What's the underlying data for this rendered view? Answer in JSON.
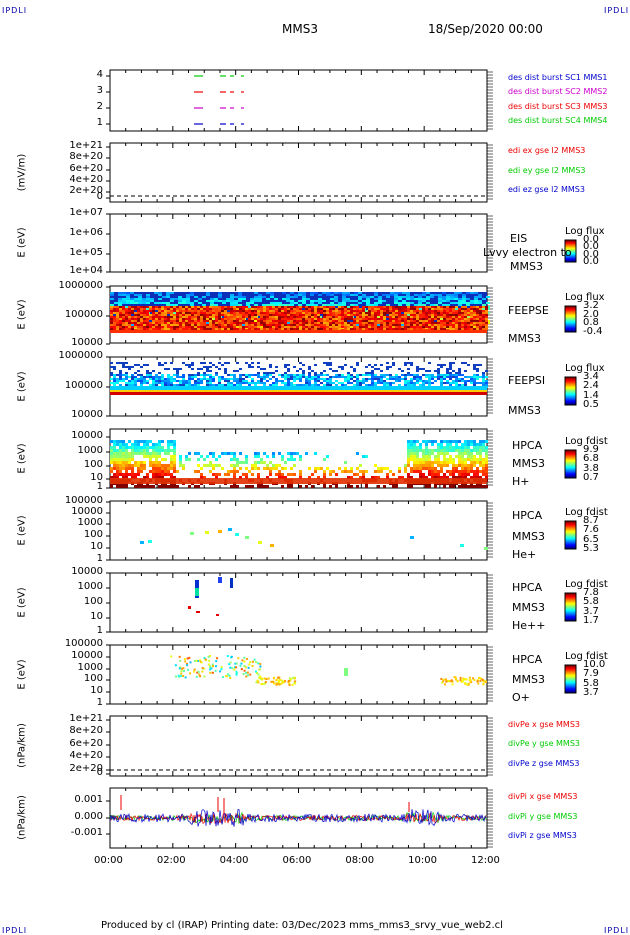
{
  "corners": {
    "tl": "IPDLI",
    "tr": "IPDLI",
    "bl": "IPDLI",
    "br": "IPDLI"
  },
  "header": {
    "title": "MMS3",
    "date": "18/Sep/2020 00:00"
  },
  "footer": {
    "text": "Produced by cl (IRAP)   Printing date: 03/Dec/2023   mms_mms3_srvy_vue_web2.cl"
  },
  "colors": {
    "c1": "#0000cc",
    "c2": "#cc00cc",
    "c3": "#ee0000",
    "c4": "#00cc00"
  },
  "chart_data": [
    {
      "type": "line",
      "id": "p1",
      "ylabel": "",
      "yticks": [
        "4",
        "3",
        "2",
        "1"
      ],
      "legend": [
        "des dist burst SC1 MMS1",
        "des dist burst SC2 MMS2",
        "des dist burst SC3 MMS3",
        "des dist burst SC4 MMS4"
      ],
      "series": [
        {
          "name": "des dist burst SC4 MMS4",
          "level": 4
        },
        {
          "name": "des dist burst SC3 MMS3",
          "level": 3
        },
        {
          "name": "des dist burst SC2 MMS2",
          "level": 2
        },
        {
          "name": "des dist burst SC1 MMS1",
          "level": 1
        }
      ]
    },
    {
      "type": "line",
      "id": "p2",
      "ylabel": "(mV/m)",
      "yticks": [
        "1e+21",
        "8e+20",
        "6e+20",
        "4e+20",
        "2e+20",
        "0"
      ],
      "legend": [
        "edi ex gse l2 MMS3",
        "edi ey gse l2 MMS3",
        "edi ez gse l2 MMS3"
      ]
    },
    {
      "type": "heatmap",
      "id": "p3",
      "ylabel": "E (eV)",
      "yticks": [
        "1e+07",
        "1e+06",
        "1e+05",
        "1e+04"
      ],
      "side": [
        "EIS",
        "MMS3"
      ],
      "overlay": "Lvvy electron to",
      "colorbar": {
        "title": "Log flux",
        "ticks": [
          "0.0",
          "0.0",
          "0.0",
          "0.0"
        ]
      }
    },
    {
      "type": "heatmap",
      "id": "p4",
      "ylabel": "E (eV)",
      "yticks": [
        "1000000",
        "100000",
        "10000"
      ],
      "side": [
        "FEEPSE",
        "MMS3"
      ],
      "colorbar": {
        "title": "Log flux",
        "ticks": [
          "3.2",
          "2.0",
          "0.8",
          "-0.4"
        ]
      }
    },
    {
      "type": "heatmap",
      "id": "p5",
      "ylabel": "E (eV)",
      "yticks": [
        "1000000",
        "100000",
        "10000"
      ],
      "side": [
        "FEEPSI",
        "MMS3"
      ],
      "colorbar": {
        "title": "Log flux",
        "ticks": [
          "3.4",
          "2.4",
          "1.4",
          "0.5"
        ]
      }
    },
    {
      "type": "heatmap",
      "id": "p6",
      "ylabel": "E (eV)",
      "yticks": [
        "10000",
        "1000",
        "100",
        "10",
        "1"
      ],
      "side": [
        "HPCA",
        "MMS3",
        "H+"
      ],
      "colorbar": {
        "title": "Log fdist",
        "ticks": [
          "9.9",
          "6.8",
          "3.8",
          "0.7"
        ]
      }
    },
    {
      "type": "heatmap",
      "id": "p7",
      "ylabel": "E (eV)",
      "yticks": [
        "100000",
        "10000",
        "1000",
        "100",
        "10",
        "1"
      ],
      "side": [
        "HPCA",
        "MMS3",
        "He+"
      ],
      "colorbar": {
        "title": "Log fdist",
        "ticks": [
          "8.7",
          "7.6",
          "6.5",
          "5.3"
        ]
      }
    },
    {
      "type": "heatmap",
      "id": "p8",
      "ylabel": "E (eV)",
      "yticks": [
        "10000",
        "1000",
        "100",
        "10",
        "1"
      ],
      "side": [
        "HPCA",
        "MMS3",
        "He++"
      ],
      "colorbar": {
        "title": "Log fdist",
        "ticks": [
          "7.8",
          "5.8",
          "3.7",
          "1.7"
        ]
      }
    },
    {
      "type": "heatmap",
      "id": "p9",
      "ylabel": "E (eV)",
      "yticks": [
        "100000",
        "10000",
        "1000",
        "100",
        "10",
        "1"
      ],
      "side": [
        "HPCA",
        "MMS3",
        "O+"
      ],
      "colorbar": {
        "title": "Log fdist",
        "ticks": [
          "10.0",
          "7.9",
          "5.8",
          "3.7"
        ]
      }
    },
    {
      "type": "line",
      "id": "p10",
      "ylabel": "(nPa/km)",
      "yticks": [
        "1e+21",
        "8e+20",
        "6e+20",
        "4e+20",
        "2e+20",
        "0"
      ],
      "legend": [
        "divPe x gse MMS3",
        "divPe y gse MMS3",
        "divPe z gse MMS3"
      ]
    },
    {
      "type": "line",
      "id": "p11",
      "ylabel": "(nPa/km)",
      "yticks": [
        "0.001",
        "0.000",
        "-0.001"
      ],
      "legend": [
        "divPi x gse MMS3",
        "divPi y gse MMS3",
        "divPi z gse MMS3"
      ]
    }
  ],
  "xaxis": {
    "ticks": [
      "00:00",
      "02:00",
      "04:00",
      "06:00",
      "08:00",
      "10:00",
      "12:00"
    ]
  }
}
